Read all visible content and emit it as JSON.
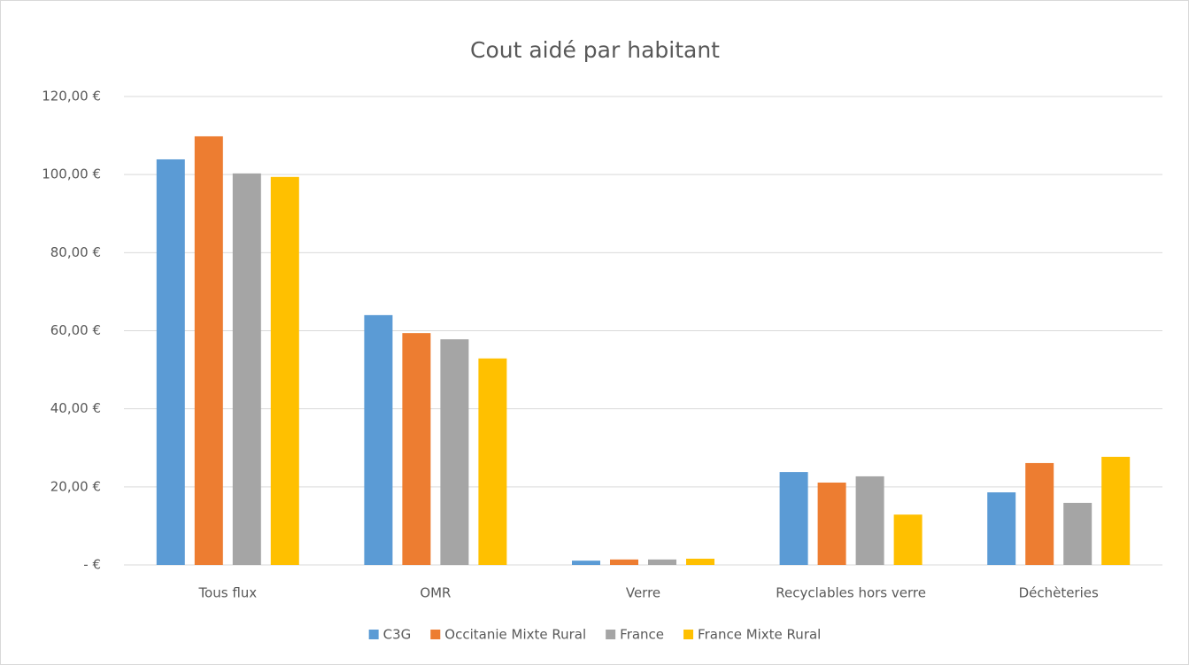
{
  "chart_data": {
    "type": "bar",
    "title": "Cout aidé par habitant",
    "categories": [
      "Tous flux",
      "OMR",
      "Verre",
      "Recyclables hors verre",
      "Déchèteries"
    ],
    "series": [
      {
        "name": "C3G",
        "color": "#5b9bd5",
        "values": [
          103.9,
          64.0,
          1.1,
          23.8,
          18.6
        ]
      },
      {
        "name": "Occitanie Mixte Rural",
        "color": "#ed7d31",
        "values": [
          109.8,
          59.4,
          1.4,
          21.1,
          26.1
        ]
      },
      {
        "name": "France",
        "color": "#a5a5a5",
        "values": [
          100.3,
          57.8,
          1.4,
          22.7,
          15.9
        ]
      },
      {
        "name": "France Mixte Rural",
        "color": "#ffc000",
        "values": [
          99.4,
          52.9,
          1.6,
          12.9,
          27.7
        ]
      }
    ],
    "ylim": [
      0,
      120
    ],
    "yticks": [
      {
        "value": 0,
        "label": "-  €"
      },
      {
        "value": 20,
        "label": "20,00 €"
      },
      {
        "value": 40,
        "label": "40,00 €"
      },
      {
        "value": 60,
        "label": "60,00 €"
      },
      {
        "value": 80,
        "label": "80,00 €"
      },
      {
        "value": 100,
        "label": "100,00 €"
      },
      {
        "value": 120,
        "label": "120,00 €"
      }
    ],
    "grid": true,
    "legend": "bottom"
  }
}
